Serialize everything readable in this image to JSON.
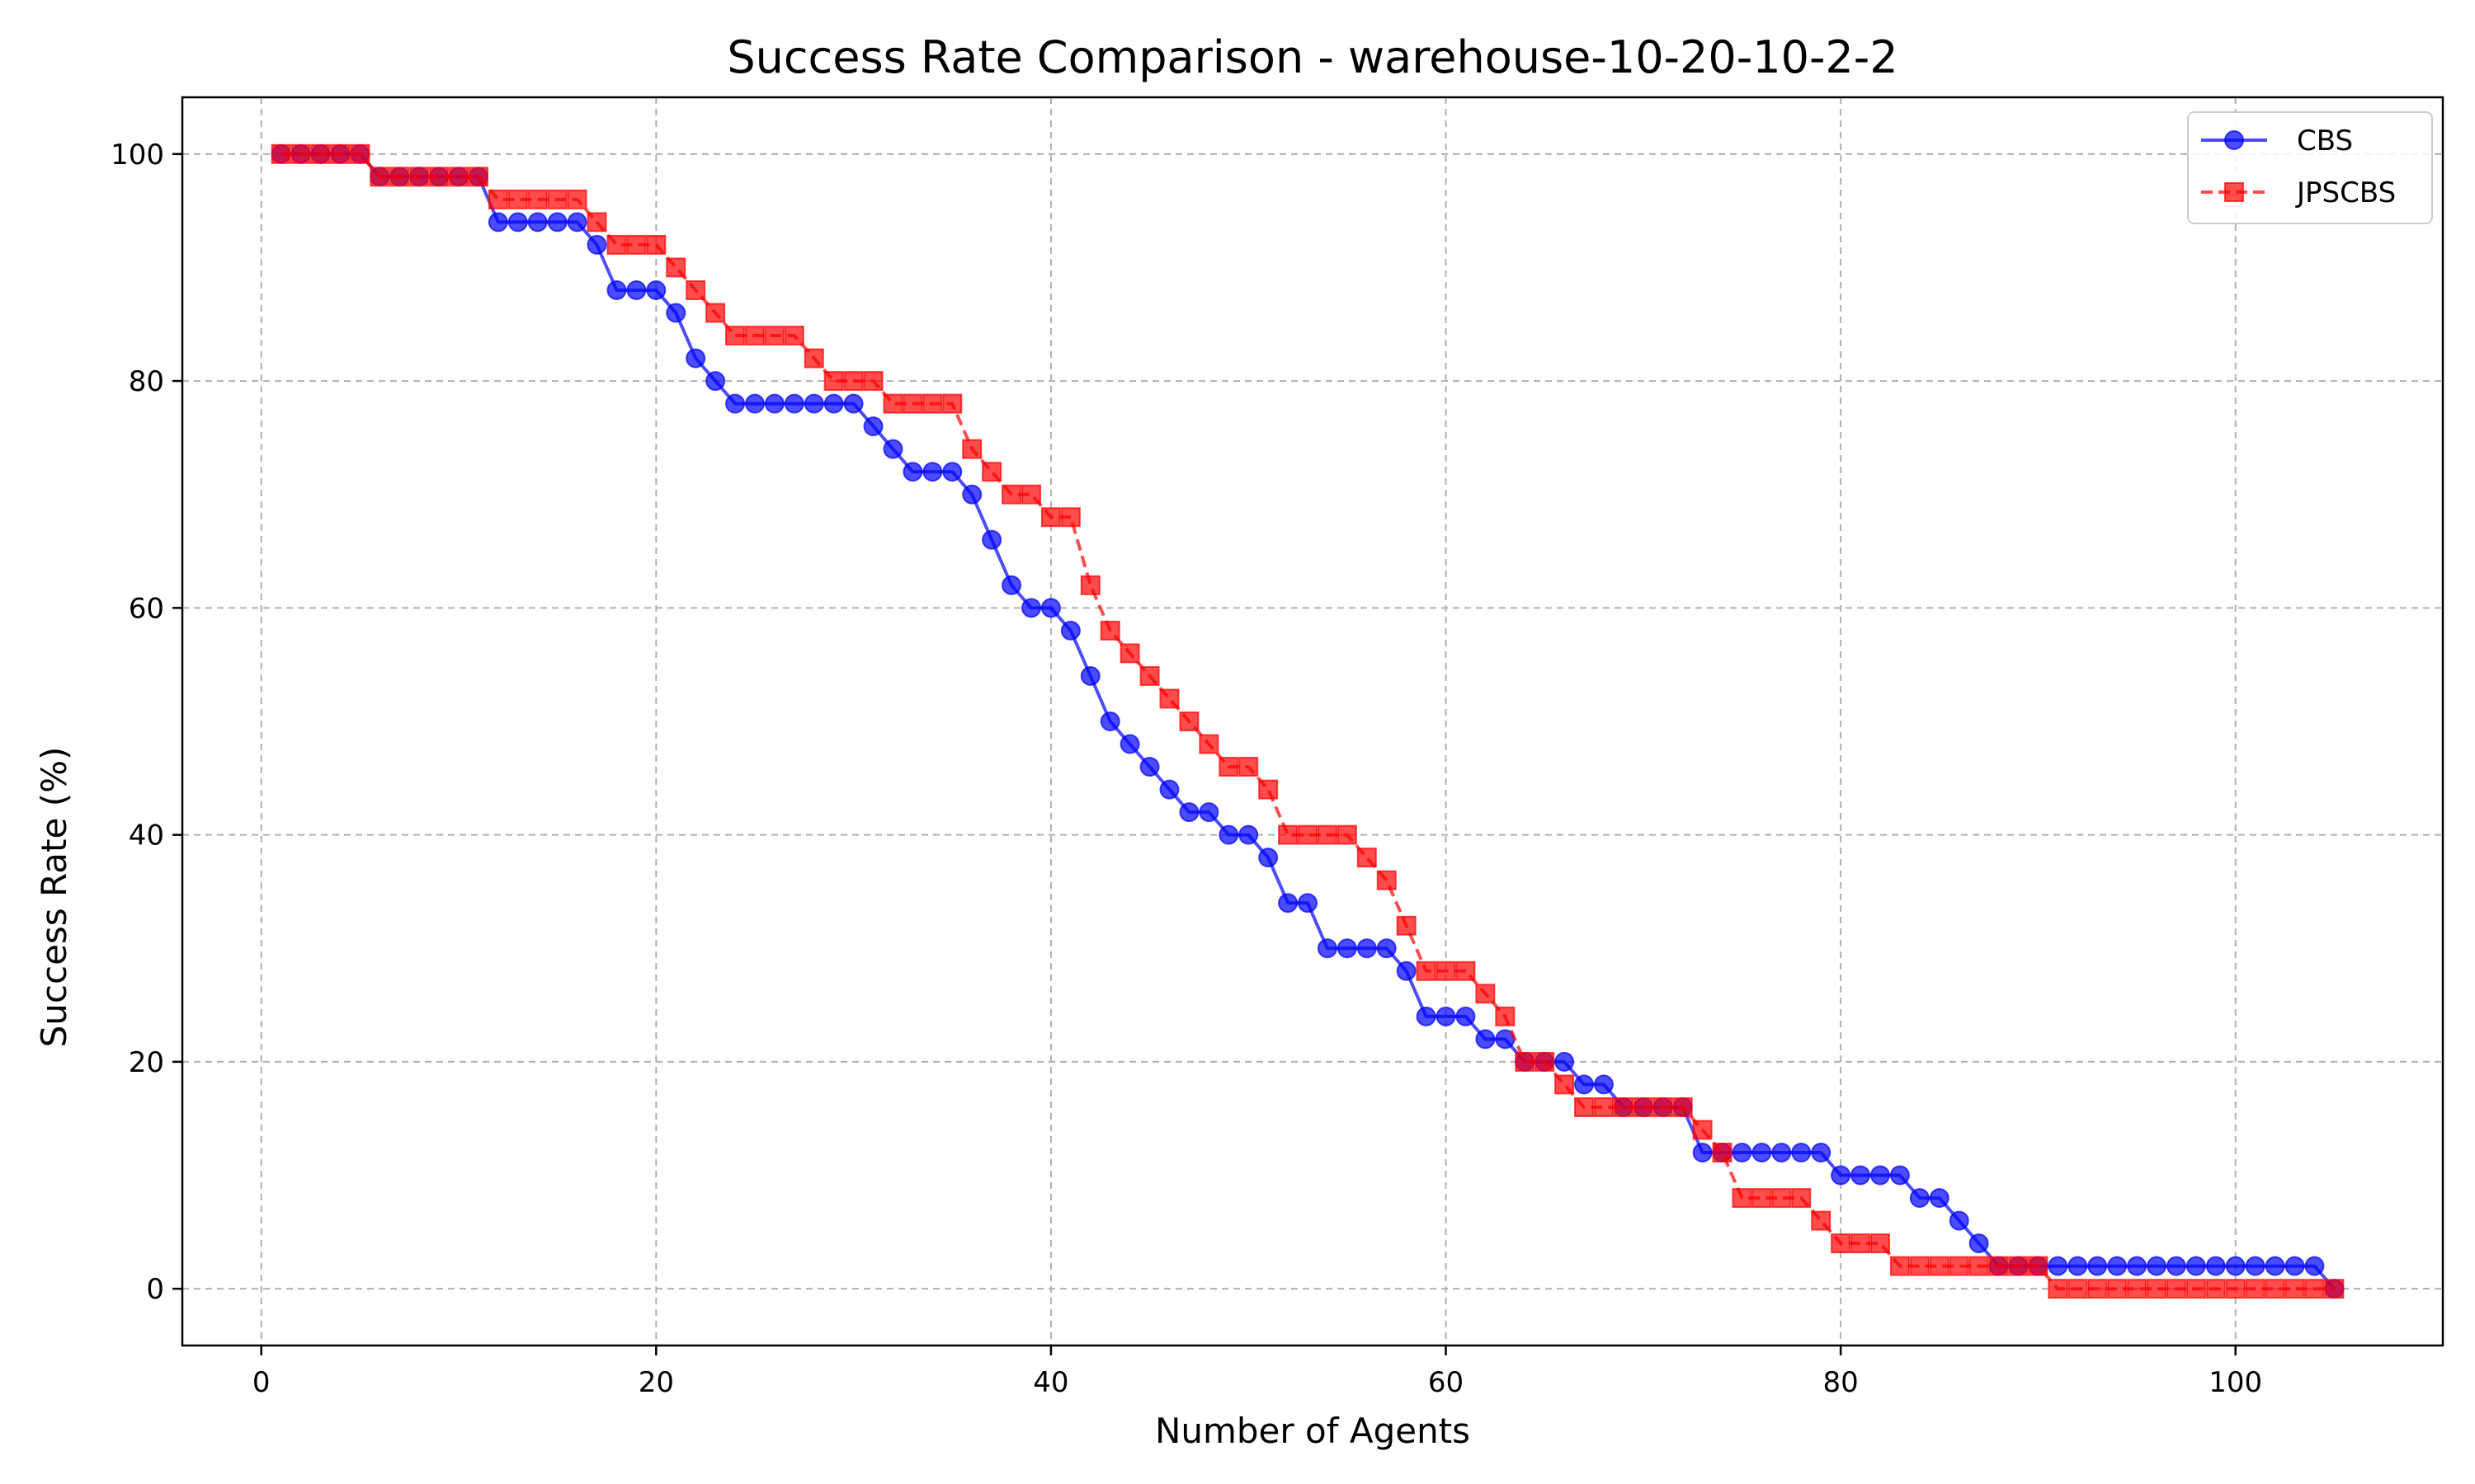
{
  "chart_data": {
    "type": "line",
    "title": "Success Rate Comparison - warehouse-10-20-10-2-2",
    "xlabel": "Number of Agents",
    "ylabel": "Success Rate (%)",
    "xlim": [
      -4,
      110.5
    ],
    "ylim": [
      -5,
      105
    ],
    "xticks": [
      0,
      20,
      40,
      60,
      80,
      100
    ],
    "yticks": [
      0,
      20,
      40,
      60,
      80,
      100
    ],
    "grid": true,
    "legend_position": "top-right",
    "x": [
      1,
      2,
      3,
      4,
      5,
      6,
      7,
      8,
      9,
      10,
      11,
      12,
      13,
      14,
      15,
      16,
      17,
      18,
      19,
      20,
      21,
      22,
      23,
      24,
      25,
      26,
      27,
      28,
      29,
      30,
      31,
      32,
      33,
      34,
      35,
      36,
      37,
      38,
      39,
      40,
      41,
      42,
      43,
      44,
      45,
      46,
      47,
      48,
      49,
      50,
      51,
      52,
      53,
      54,
      55,
      56,
      57,
      58,
      59,
      60,
      61,
      62,
      63,
      64,
      65,
      66,
      67,
      68,
      69,
      70,
      71,
      72,
      73,
      74,
      75,
      76,
      77,
      78,
      79,
      80,
      81,
      82,
      83,
      84,
      85,
      86,
      87,
      88,
      89,
      90,
      91,
      92,
      93,
      94,
      95,
      96,
      97,
      98,
      99,
      100,
      101,
      102,
      103,
      104,
      105
    ],
    "series": [
      {
        "name": "CBS",
        "color": "#0000ff",
        "line_style": "solid",
        "marker": "circle",
        "values": [
          100,
          100,
          100,
          100,
          100,
          98,
          98,
          98,
          98,
          98,
          98,
          94,
          94,
          94,
          94,
          94,
          92,
          88,
          88,
          88,
          86,
          82,
          80,
          78,
          78,
          78,
          78,
          78,
          78,
          78,
          76,
          74,
          72,
          72,
          72,
          70,
          66,
          62,
          60,
          60,
          58,
          54,
          50,
          48,
          46,
          44,
          42,
          42,
          40,
          40,
          38,
          34,
          34,
          30,
          30,
          30,
          30,
          28,
          24,
          24,
          24,
          22,
          22,
          20,
          20,
          20,
          18,
          18,
          16,
          16,
          16,
          16,
          12,
          12,
          12,
          12,
          12,
          12,
          12,
          10,
          10,
          10,
          10,
          8,
          8,
          6,
          4,
          2,
          2,
          2,
          2,
          2,
          2,
          2,
          2,
          2,
          2,
          2,
          2,
          2,
          2,
          2,
          2,
          2,
          0
        ]
      },
      {
        "name": "JPSCBS",
        "color": "#ff0000",
        "line_style": "dashed",
        "marker": "square",
        "values": [
          100,
          100,
          100,
          100,
          100,
          98,
          98,
          98,
          98,
          98,
          98,
          96,
          96,
          96,
          96,
          96,
          94,
          92,
          92,
          92,
          90,
          88,
          86,
          84,
          84,
          84,
          84,
          82,
          80,
          80,
          80,
          78,
          78,
          78,
          78,
          74,
          72,
          70,
          70,
          68,
          68,
          62,
          58,
          56,
          54,
          52,
          50,
          48,
          46,
          46,
          44,
          40,
          40,
          40,
          40,
          38,
          36,
          32,
          28,
          28,
          28,
          26,
          24,
          20,
          20,
          18,
          16,
          16,
          16,
          16,
          16,
          16,
          14,
          12,
          8,
          8,
          8,
          8,
          6,
          4,
          4,
          4,
          2,
          2,
          2,
          2,
          2,
          2,
          2,
          2,
          0,
          0,
          0,
          0,
          0,
          0,
          0,
          0,
          0,
          0,
          0,
          0,
          0,
          0,
          0
        ]
      }
    ]
  }
}
